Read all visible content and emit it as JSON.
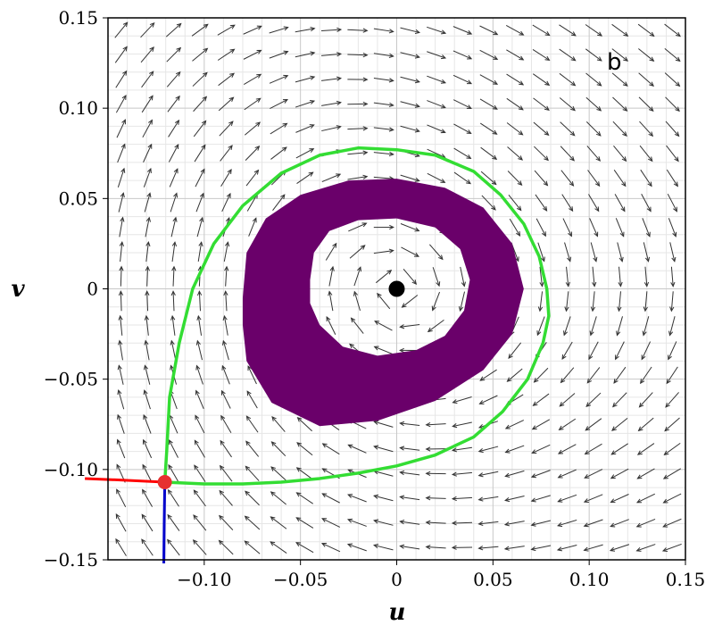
{
  "chart_data": {
    "type": "scatter",
    "subtype": "phase-portrait",
    "xlabel": "u",
    "ylabel": "v",
    "xlim": [
      -0.15,
      0.15
    ],
    "ylim": [
      -0.15,
      0.15
    ],
    "grid": true,
    "x_ticks": [
      {
        "value": -0.1,
        "label": "−0.10"
      },
      {
        "value": -0.05,
        "label": "−0.05"
      },
      {
        "value": 0,
        "label": "0"
      },
      {
        "value": 0.05,
        "label": "0.05"
      },
      {
        "value": 0.1,
        "label": "0.10"
      },
      {
        "value": 0.15,
        "label": "0.15"
      }
    ],
    "y_ticks": [
      {
        "value": 0.15,
        "label": "0.15"
      },
      {
        "value": 0.1,
        "label": "0.10"
      },
      {
        "value": 0.05,
        "label": "0.05"
      },
      {
        "value": 0,
        "label": "0"
      },
      {
        "value": -0.05,
        "label": "−0.05"
      },
      {
        "value": -0.1,
        "label": "−0.10"
      },
      {
        "value": -0.15,
        "label": "−0.15"
      }
    ],
    "annotation": "b",
    "colors": {
      "arrows": "#333333",
      "band": "#6a006a",
      "equilibrium_center": "#000000",
      "saddle": "#e63030",
      "unstable_manifold": "#ff0000",
      "stable_manifold": "#0000cc",
      "homoclinic_orbit": "#33dd33",
      "grid": "#c8c8c8"
    },
    "equilibria": [
      {
        "name": "center",
        "u": 0.0,
        "v": 0.0
      },
      {
        "name": "saddle",
        "u": -0.1205,
        "v": -0.107
      }
    ],
    "homoclinic_orbit": [
      [
        -0.1205,
        -0.107
      ],
      [
        -0.1,
        -0.108
      ],
      [
        -0.08,
        -0.108
      ],
      [
        -0.06,
        -0.107
      ],
      [
        -0.04,
        -0.105
      ],
      [
        -0.02,
        -0.102
      ],
      [
        0.0,
        -0.098
      ],
      [
        0.02,
        -0.092
      ],
      [
        0.04,
        -0.082
      ],
      [
        0.055,
        -0.068
      ],
      [
        0.068,
        -0.05
      ],
      [
        0.076,
        -0.03
      ],
      [
        0.079,
        -0.015
      ],
      [
        0.078,
        0.0
      ],
      [
        0.074,
        0.018
      ],
      [
        0.066,
        0.036
      ],
      [
        0.054,
        0.052
      ],
      [
        0.04,
        0.065
      ],
      [
        0.02,
        0.074
      ],
      [
        0.0,
        0.077
      ],
      [
        -0.02,
        0.078
      ],
      [
        -0.04,
        0.074
      ],
      [
        -0.06,
        0.064
      ],
      [
        -0.08,
        0.046
      ],
      [
        -0.095,
        0.025
      ],
      [
        -0.106,
        0.0
      ],
      [
        -0.113,
        -0.03
      ],
      [
        -0.118,
        -0.06
      ],
      [
        -0.1195,
        -0.09
      ],
      [
        -0.1205,
        -0.107
      ]
    ],
    "unstable_manifold_branch": [
      [
        -0.1205,
        -0.107
      ],
      [
        -0.14,
        -0.106
      ],
      [
        -0.162,
        -0.105
      ]
    ],
    "stable_manifold_branch": [
      [
        -0.1205,
        -0.107
      ],
      [
        -0.1208,
        -0.13
      ],
      [
        -0.121,
        -0.152
      ]
    ],
    "band": {
      "outer": [
        [
          -0.08,
          -0.005
        ],
        [
          -0.078,
          0.02
        ],
        [
          -0.068,
          0.039
        ],
        [
          -0.05,
          0.052
        ],
        [
          -0.025,
          0.06
        ],
        [
          0.0,
          0.061
        ],
        [
          0.025,
          0.056
        ],
        [
          0.045,
          0.045
        ],
        [
          0.06,
          0.025
        ],
        [
          0.066,
          0.0
        ],
        [
          0.06,
          -0.025
        ],
        [
          0.045,
          -0.045
        ],
        [
          0.02,
          -0.062
        ],
        [
          -0.01,
          -0.073
        ],
        [
          -0.04,
          -0.076
        ],
        [
          -0.065,
          -0.063
        ],
        [
          -0.078,
          -0.04
        ],
        [
          -0.08,
          -0.02
        ]
      ],
      "inner": [
        [
          -0.045,
          0.005
        ],
        [
          -0.043,
          0.02
        ],
        [
          -0.035,
          0.032
        ],
        [
          -0.02,
          0.038
        ],
        [
          0.0,
          0.039
        ],
        [
          0.02,
          0.034
        ],
        [
          0.033,
          0.022
        ],
        [
          0.038,
          0.005
        ],
        [
          0.035,
          -0.012
        ],
        [
          0.025,
          -0.026
        ],
        [
          0.01,
          -0.034
        ],
        [
          -0.01,
          -0.037
        ],
        [
          -0.028,
          -0.032
        ],
        [
          -0.04,
          -0.02
        ],
        [
          -0.045,
          -0.008
        ]
      ]
    }
  }
}
